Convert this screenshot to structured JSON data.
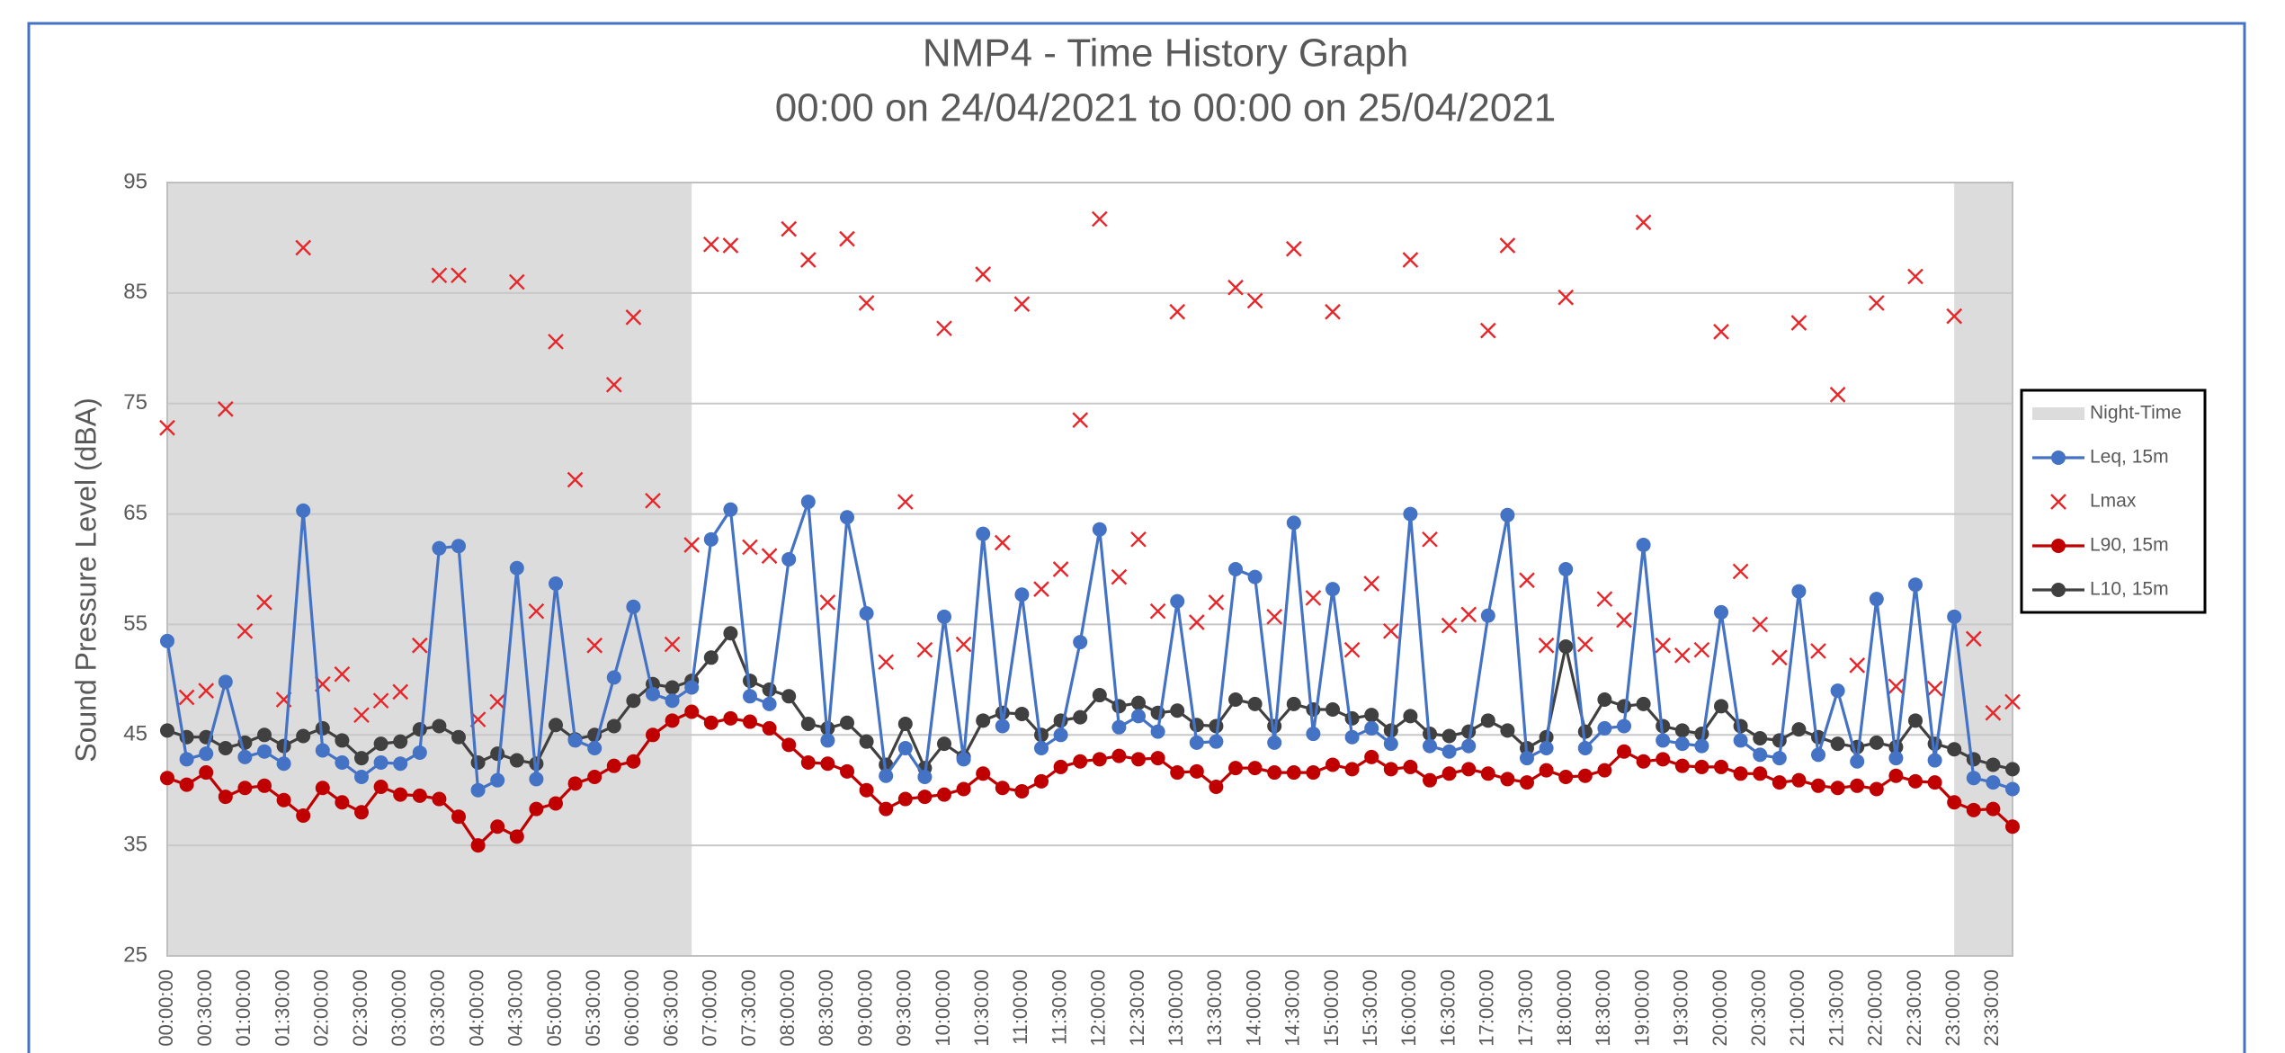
{
  "chart_data": {
    "type": "line",
    "title": "NMP4 - Time History Graph",
    "subtitle": "00:00 on 24/04/2021 to 00:00 on 25/04/2021",
    "y_label": "Sound Pressure Level (dBA)",
    "ylim": [
      25,
      95
    ],
    "yticks": [
      25,
      35,
      45,
      55,
      65,
      75,
      85,
      95
    ],
    "grid": true,
    "legend": "right",
    "night_time": {
      "name": "Night-Time",
      "color": "#dcdcdc",
      "spans": [
        [
          0,
          27
        ],
        [
          92,
          95
        ]
      ]
    },
    "categories": [
      "00:00:00",
      null,
      "00:30:00",
      null,
      "01:00:00",
      null,
      "01:30:00",
      null,
      "02:00:00",
      null,
      "02:30:00",
      null,
      "03:00:00",
      null,
      "03:30:00",
      null,
      "04:00:00",
      null,
      "04:30:00",
      null,
      "05:00:00",
      null,
      "05:30:00",
      null,
      "06:00:00",
      null,
      "06:30:00",
      null,
      "07:00:00",
      null,
      "07:30:00",
      null,
      "08:00:00",
      null,
      "08:30:00",
      null,
      "09:00:00",
      null,
      "09:30:00",
      null,
      "10:00:00",
      null,
      "10:30:00",
      null,
      "11:00:00",
      null,
      "11:30:00",
      null,
      "12:00:00",
      null,
      "12:30:00",
      null,
      "13:00:00",
      null,
      "13:30:00",
      null,
      "14:00:00",
      null,
      "14:30:00",
      null,
      "15:00:00",
      null,
      "15:30:00",
      null,
      "16:00:00",
      null,
      "16:30:00",
      null,
      "17:00:00",
      null,
      "17:30:00",
      null,
      "18:00:00",
      null,
      "18:30:00",
      null,
      "19:00:00",
      null,
      "19:30:00",
      null,
      "20:00:00",
      null,
      "20:30:00",
      null,
      "21:00:00",
      null,
      "21:30:00",
      null,
      "22:00:00",
      null,
      "22:30:00",
      null,
      "23:00:00",
      null,
      "23:30:00",
      null
    ],
    "series": [
      {
        "name": "Leq, 15m",
        "color": "#4472c4",
        "style": "line",
        "values": [
          53.5,
          42.8,
          43.3,
          49.8,
          43,
          43.5,
          42.4,
          65.3,
          43.6,
          42.5,
          41.2,
          42.5,
          42.4,
          43.4,
          61.9,
          62.1,
          40,
          40.9,
          60.1,
          41,
          58.7,
          44.5,
          43.8,
          50.2,
          56.6,
          48.7,
          48.1,
          49.3,
          62.7,
          65.4,
          48.5,
          47.8,
          60.9,
          66.1,
          44.5,
          64.7,
          56,
          41.3,
          43.8,
          41.2,
          55.7,
          42.8,
          63.2,
          45.8,
          57.7,
          43.8,
          45,
          53.4,
          63.6,
          45.7,
          46.7,
          45.3,
          57.1,
          44.3,
          44.4,
          60,
          59.3,
          44.3,
          64.2,
          45.1,
          58.2,
          44.8,
          45.6,
          44.2,
          65,
          44,
          43.5,
          44,
          55.8,
          64.9,
          42.9,
          43.8,
          60,
          43.8,
          45.6,
          45.8,
          62.2,
          44.5,
          44.2,
          44,
          56.1,
          44.5,
          43.2,
          42.9,
          58,
          43.2,
          49,
          42.6,
          57.3,
          42.9,
          58.6,
          42.7,
          55.7,
          41.1,
          40.7,
          40.1
        ]
      },
      {
        "name": "Lmax",
        "color": "#e8262a",
        "style": "x",
        "values": [
          72.8,
          48.4,
          49,
          74.5,
          54.4,
          57,
          48.2,
          89.1,
          49.6,
          50.5,
          46.8,
          48.1,
          48.9,
          53.1,
          86.6,
          86.6,
          46.4,
          48,
          86,
          56.2,
          80.6,
          68.1,
          53.1,
          76.7,
          82.8,
          66.2,
          53.2,
          62.2,
          89.4,
          89.3,
          62,
          61.2,
          90.8,
          88,
          57,
          89.9,
          84.1,
          51.6,
          66.1,
          52.7,
          81.8,
          53.2,
          86.7,
          62.4,
          84,
          58.2,
          60,
          73.5,
          91.7,
          59.3,
          62.7,
          56.2,
          83.3,
          55.2,
          57,
          85.5,
          84.3,
          55.7,
          89,
          57.4,
          83.3,
          52.7,
          58.7,
          54.4,
          88,
          62.7,
          54.9,
          55.9,
          81.6,
          89.3,
          59,
          53.1,
          84.6,
          53.2,
          57.3,
          55.4,
          91.4,
          53.1,
          52.2,
          52.7,
          81.5,
          59.8,
          55,
          52,
          82.3,
          52.6,
          75.8,
          51.3,
          84.1,
          49.4,
          86.5,
          49.2,
          82.9,
          53.7,
          47,
          48
        ]
      },
      {
        "name": "L90, 15m",
        "color": "#c00000",
        "style": "line",
        "values": [
          41.1,
          40.5,
          41.6,
          39.4,
          40.2,
          40.4,
          39.1,
          37.7,
          40.2,
          38.9,
          38,
          40.3,
          39.6,
          39.5,
          39.2,
          37.6,
          35,
          36.7,
          35.8,
          38.3,
          38.8,
          40.6,
          41.2,
          42.2,
          42.6,
          45,
          46.3,
          47.1,
          46.1,
          46.5,
          46.2,
          45.6,
          44.1,
          42.5,
          42.4,
          41.7,
          40,
          38.3,
          39.2,
          39.4,
          39.6,
          40.1,
          41.5,
          40.2,
          39.9,
          40.8,
          42.1,
          42.6,
          42.8,
          43.1,
          42.8,
          42.9,
          41.6,
          41.7,
          40.3,
          42,
          42,
          41.6,
          41.6,
          41.6,
          42.3,
          41.9,
          43,
          41.9,
          42.1,
          40.9,
          41.5,
          41.9,
          41.5,
          41,
          40.7,
          41.8,
          41.2,
          41.3,
          41.8,
          43.5,
          42.6,
          42.8,
          42.2,
          42.1,
          42.1,
          41.5,
          41.5,
          40.7,
          40.9,
          40.4,
          40.2,
          40.4,
          40.1,
          41.3,
          40.8,
          40.7,
          38.9,
          38.2,
          38.3,
          36.7
        ]
      },
      {
        "name": "L10, 15m",
        "color": "#404040",
        "style": "line",
        "values": [
          45.4,
          44.8,
          44.8,
          43.8,
          44.3,
          45,
          44,
          44.9,
          45.6,
          44.5,
          42.9,
          44.2,
          44.4,
          45.5,
          45.8,
          44.8,
          42.5,
          43.3,
          42.7,
          42.4,
          45.9,
          44.6,
          45,
          45.8,
          48.1,
          49.6,
          49.3,
          49.9,
          52,
          54.2,
          49.9,
          49.1,
          48.5,
          46,
          45.6,
          46.1,
          44.4,
          42.3,
          46,
          42,
          44.2,
          43,
          46.3,
          47,
          46.9,
          45,
          46.3,
          46.6,
          48.6,
          47.6,
          47.9,
          47,
          47.2,
          45.9,
          45.8,
          48.2,
          47.8,
          45.8,
          47.8,
          47.3,
          47.3,
          46.5,
          46.8,
          45.4,
          46.7,
          45.1,
          44.9,
          45.3,
          46.3,
          45.4,
          43.8,
          44.8,
          53,
          45.3,
          48.2,
          47.6,
          47.8,
          45.8,
          45.4,
          45.1,
          47.6,
          45.8,
          44.7,
          44.5,
          45.5,
          44.8,
          44.2,
          43.9,
          44.3,
          43.9,
          46.3,
          44.2,
          43.7,
          42.8,
          42.3,
          41.9
        ]
      }
    ]
  }
}
